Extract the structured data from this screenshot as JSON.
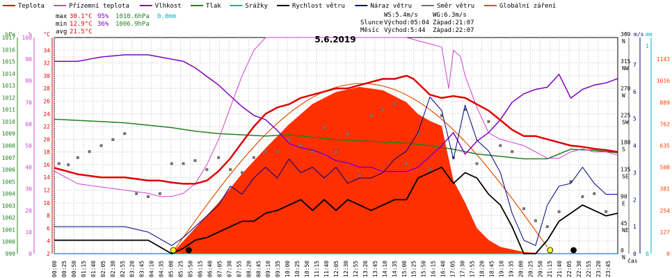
{
  "legend": [
    {
      "label": "Teplota",
      "color": "#e00000"
    },
    {
      "label": "Přízemní teplota",
      "color": "#d040d0"
    },
    {
      "label": "Vlhkost",
      "color": "#8000c0"
    },
    {
      "label": "Tlak",
      "color": "#208020"
    },
    {
      "label": "Srážky",
      "color": "#00b0d0"
    },
    {
      "label": "Rychlost větru",
      "color": "#000000"
    },
    {
      "label": "Náraz větru",
      "color": "#000080"
    },
    {
      "label": "Směr větru",
      "color": "#707070"
    },
    {
      "label": "Globální záření",
      "color": "#ff4000"
    }
  ],
  "stats": {
    "max": {
      "label": "max",
      "temp": "30.1°C",
      "hum": "95%",
      "press": "1010.6hPa",
      "rain": "0.0mm"
    },
    "min": {
      "label": "min",
      "temp": "12.9°C",
      "hum": "36%",
      "press": "1006.9hPa"
    },
    "avg": {
      "label": "avg",
      "temp": "21.5°C"
    }
  },
  "wind_info": {
    "ws": "WS:5.4m/s",
    "wg": "WG:6.3m/s"
  },
  "sun": {
    "label": "Slunce",
    "rise": "Východ:05:04",
    "set": "Západ:21:07"
  },
  "moon": {
    "label": "Měsíc",
    "rise": "Východ:5:44",
    "set": "Západ:22:07"
  },
  "chart_data": {
    "type": "line",
    "title": "5.6.2019",
    "xlabel": "čas",
    "x_ticks": [
      "00:00",
      "00:25",
      "00:50",
      "01:15",
      "01:40",
      "02:05",
      "02:30",
      "02:55",
      "03:20",
      "03:45",
      "04:10",
      "04:35",
      "05:00",
      "05:25",
      "05:50",
      "06:15",
      "06:40",
      "07:05",
      "07:30",
      "07:55",
      "08:20",
      "08:45",
      "09:10",
      "09:35",
      "10:00",
      "10:25",
      "10:50",
      "11:15",
      "11:40",
      "12:05",
      "12:30",
      "12:55",
      "13:20",
      "13:45",
      "14:10",
      "14:35",
      "15:00",
      "15:25",
      "15:50",
      "16:15",
      "16:40",
      "17:05",
      "17:30",
      "17:55",
      "18:20",
      "18:45",
      "19:10",
      "19:35",
      "20:00",
      "20:25",
      "20:50",
      "21:15",
      "21:40",
      "22:05",
      "22:30",
      "22:55",
      "23:20",
      "23:45"
    ],
    "axes": {
      "pressure": {
        "unit": "hPa",
        "range": [
          999,
          1017
        ],
        "ticks": [
          "999",
          "1000",
          "1001",
          "1002",
          "1003",
          "1004",
          "1005",
          "1006",
          "1007",
          "1008",
          "1009",
          "1010",
          "1011",
          "1012",
          "1013",
          "1014",
          "1015",
          "1016",
          "1017"
        ]
      },
      "humidity": {
        "unit": "%",
        "range": [
          0,
          100
        ],
        "ticks": [
          "0",
          "10",
          "20",
          "30",
          "40",
          "50",
          "60",
          "70",
          "80",
          "90",
          "100"
        ]
      },
      "temperature": {
        "unit": "°C",
        "range": [
          2,
          36
        ],
        "ticks": [
          "2",
          "4",
          "6",
          "8",
          "10",
          "12",
          "14",
          "16",
          "18",
          "20",
          "22",
          "24",
          "26",
          "28",
          "30",
          "32",
          "34"
        ]
      },
      "direction": {
        "unit": "°",
        "range": [
          0,
          360
        ],
        "ticks": [
          "0",
          "45",
          "90",
          "135",
          "180",
          "225",
          "270",
          "315",
          "360"
        ],
        "compass": [
          "N",
          "NE",
          "E",
          "SE",
          "S",
          "SW",
          "W",
          "NW",
          "N"
        ]
      },
      "wind": {
        "unit": "m/s",
        "range": [
          0,
          8
        ],
        "ticks": [
          "0",
          "1",
          "2",
          "3",
          "4",
          "5",
          "6",
          "7"
        ]
      },
      "rain": {
        "unit": "mm",
        "range": [
          0,
          1
        ],
        "ticks": [
          "0",
          "1"
        ]
      },
      "radiation": {
        "range": [
          0,
          1270
        ],
        "ticks": [
          "0",
          "127",
          "254",
          "381",
          "508",
          "635",
          "762",
          "889",
          "1016",
          "1143"
        ]
      }
    },
    "series": [
      {
        "name": "Teplota",
        "unit": "°C",
        "x": [
          0,
          1,
          2,
          3,
          4,
          4.5,
          5,
          5.5,
          6,
          6.5,
          7,
          7.5,
          8,
          8.5,
          9,
          9.5,
          10,
          10.5,
          11,
          11.5,
          12,
          12.5,
          13,
          13.5,
          14,
          14.5,
          15,
          15.3,
          16,
          16.5,
          17,
          17.5,
          18,
          18.5,
          19,
          19.5,
          20,
          20.5,
          21,
          21.5,
          22,
          22.5,
          23,
          23.5,
          24
        ],
        "values": [
          15.5,
          14.5,
          14,
          14,
          13.5,
          13.5,
          13.2,
          13,
          13,
          13.5,
          15,
          17,
          19.5,
          22,
          24,
          25,
          25.5,
          26.5,
          27,
          27.5,
          28,
          28,
          28.5,
          29,
          29.5,
          29.5,
          30,
          29.5,
          27,
          26.5,
          26.8,
          26.5,
          25.5,
          24.5,
          23,
          21.5,
          20.5,
          20.5,
          20,
          19.5,
          19,
          18.8,
          18.5,
          18.3,
          18
        ]
      },
      {
        "name": "Přízemní teplota",
        "unit": "°C",
        "x": [
          0,
          1,
          2,
          3,
          4,
          4.5,
          5,
          5.5,
          6,
          6.5,
          7,
          7.5,
          8,
          8.5,
          9,
          9.5,
          10,
          10.5,
          11,
          11.5,
          12,
          12.5,
          13,
          13.5,
          14,
          14.5,
          15,
          15.5,
          16,
          16.5,
          16.8,
          17,
          17.3,
          17.5,
          18,
          18.5,
          19,
          19.5,
          20,
          20.5,
          21,
          21.5,
          22,
          22.5,
          23,
          23.5,
          24
        ],
        "values": [
          15,
          13,
          12.5,
          12,
          11.5,
          11,
          11,
          11.5,
          13,
          16,
          20,
          25,
          30,
          34,
          36,
          36,
          36,
          36,
          36,
          36,
          36,
          36,
          36,
          36,
          36,
          36,
          36,
          35.5,
          35,
          34.5,
          28,
          34,
          33,
          30,
          25,
          21,
          20,
          19.5,
          19,
          18,
          17,
          17,
          18,
          18.5,
          18,
          18,
          17.5
        ]
      },
      {
        "name": "Vlhkost",
        "unit": "%",
        "x": [
          0,
          1,
          2,
          3,
          4,
          4.5,
          5,
          5.5,
          6,
          6.5,
          7,
          7.5,
          8,
          8.5,
          9,
          9.5,
          10,
          10.5,
          11,
          11.5,
          12,
          12.5,
          13,
          13.5,
          14,
          14.5,
          15,
          15.5,
          16,
          16.5,
          17,
          17.5,
          18,
          18.5,
          19,
          19.5,
          20,
          20.5,
          21,
          21.5,
          22,
          22.5,
          23,
          23.5,
          24
        ],
        "values": [
          89,
          89,
          91,
          92,
          92,
          91,
          90,
          89,
          86,
          82,
          78,
          73,
          68,
          64,
          62,
          57,
          51,
          49,
          48,
          46,
          43,
          42,
          40,
          40,
          38,
          38,
          38,
          40,
          45,
          50,
          56,
          46,
          52,
          56,
          62,
          70,
          74,
          76,
          77,
          83,
          72,
          76,
          78,
          79,
          81
        ]
      },
      {
        "name": "Tlak",
        "unit": "hPa",
        "x": [
          0,
          1,
          2,
          3,
          4,
          5,
          6,
          7,
          8,
          9,
          10,
          11,
          12,
          13,
          14,
          15,
          16,
          17,
          18,
          19,
          20,
          21,
          22,
          23,
          24
        ],
        "values": [
          1010.2,
          1010.1,
          1010,
          1009.9,
          1009.7,
          1009.5,
          1009.2,
          1009,
          1008.9,
          1008.8,
          1008.9,
          1008.7,
          1008.5,
          1008.4,
          1008.3,
          1008.2,
          1008,
          1007.7,
          1007.3,
          1007.1,
          1006.9,
          1006.9,
          1007.7,
          1007.6,
          1007.4
        ]
      },
      {
        "name": "Srážky",
        "unit": "mm",
        "x": [
          0,
          24
        ],
        "values": [
          0,
          0
        ]
      },
      {
        "name": "Rychlost větru",
        "unit": "m/s",
        "x": [
          0,
          1,
          2,
          3,
          4,
          5,
          5.5,
          6,
          6.5,
          7,
          7.5,
          8,
          8.5,
          9,
          9.5,
          10,
          10.5,
          11,
          11.5,
          12,
          12.5,
          13,
          13.5,
          14,
          14.5,
          15,
          15.5,
          16,
          16.5,
          17,
          17.5,
          18,
          18.5,
          19,
          19.5,
          20,
          20.5,
          21,
          21.5,
          22,
          22.5,
          23,
          23.5,
          24
        ],
        "values": [
          0.5,
          0.5,
          0.5,
          0.5,
          0.5,
          0,
          0.2,
          0.5,
          0.6,
          0.8,
          1,
          1.2,
          1.2,
          1.5,
          1.6,
          1.8,
          2,
          1.6,
          2,
          1.6,
          2,
          1.8,
          1.6,
          1.8,
          2,
          2,
          2.8,
          3,
          3.2,
          2.6,
          3,
          2.8,
          2.2,
          1.8,
          1,
          0,
          0,
          0.5,
          1.2,
          1.5,
          1.8,
          1.6,
          1.4,
          1.5
        ]
      },
      {
        "name": "Náraz větru",
        "unit": "m/s",
        "x": [
          0,
          1,
          2,
          3,
          4,
          5,
          5.5,
          6,
          6.5,
          7,
          7.5,
          8,
          8.5,
          9,
          9.5,
          10,
          10.5,
          11,
          11.5,
          12,
          12.5,
          13,
          13.5,
          14,
          14.5,
          15,
          15.5,
          16,
          16.5,
          17,
          17.5,
          18,
          18.5,
          19,
          19.5,
          20,
          20.5,
          21,
          21.5,
          22,
          22.5,
          23,
          23.5,
          24
        ],
        "values": [
          1,
          1,
          1,
          1,
          0.8,
          0.3,
          0.6,
          1,
          1.4,
          1.8,
          2.5,
          2.2,
          2.8,
          3.2,
          2.8,
          3.5,
          3,
          3.2,
          2.8,
          3.2,
          2.6,
          2.8,
          2.8,
          3,
          3.5,
          3.8,
          4.5,
          5.8,
          5.3,
          3.5,
          5.5,
          4.2,
          3.8,
          3,
          1.5,
          0.5,
          0.3,
          1.8,
          2.5,
          2.6,
          3.2,
          2.6,
          2.2,
          2.2
        ]
      },
      {
        "name": "Globální záření",
        "unit": "W/m²",
        "x": [
          5,
          6,
          7,
          8,
          9,
          10,
          11,
          12,
          13,
          14,
          15,
          15.5,
          16,
          16.5,
          17,
          17.5,
          18,
          18.5,
          19,
          20,
          21
        ],
        "values": [
          0,
          150,
          300,
          470,
          620,
          760,
          880,
          950,
          980,
          960,
          890,
          820,
          780,
          750,
          430,
          300,
          150,
          80,
          40,
          10,
          0
        ]
      },
      {
        "name": "Směr větru",
        "unit": "°",
        "x": [
          0.2,
          0.6,
          1,
          1.5,
          2,
          2.5,
          3,
          3.5,
          4,
          4.5,
          5,
          5.5,
          6,
          6.5,
          7,
          7.5,
          8,
          8.5,
          9,
          9.5,
          10,
          10.5,
          11,
          11.5,
          12,
          12.5,
          13,
          13.5,
          14,
          14.5,
          15,
          15.5,
          16,
          16.5,
          17,
          17.5,
          18,
          18.5,
          19,
          19.5,
          20,
          20.5,
          21,
          21.5,
          22,
          22.5,
          23,
          23.5
        ],
        "values": [
          150,
          148,
          160,
          170,
          180,
          190,
          200,
          100,
          95,
          100,
          150,
          150,
          155,
          140,
          160,
          140,
          135,
          160,
          170,
          170,
          190,
          180,
          170,
          210,
          170,
          200,
          130,
          230,
          240,
          250,
          150,
          200,
          140,
          230,
          160,
          240,
          150,
          220,
          180,
          170,
          75,
          55,
          45,
          70,
          120,
          95,
          100,
          70
        ]
      }
    ],
    "markers": [
      {
        "name": "Východ slunce",
        "x": 5.07,
        "color": "#ffff00"
      },
      {
        "name": "Západ slunce",
        "x": 21.12,
        "color": "#ffff00"
      },
      {
        "name": "Východ měsíce",
        "x": 5.73,
        "color": "#000000"
      },
      {
        "name": "Západ měsíce",
        "x": 22.12,
        "color": "#000000"
      }
    ],
    "grid": true
  }
}
